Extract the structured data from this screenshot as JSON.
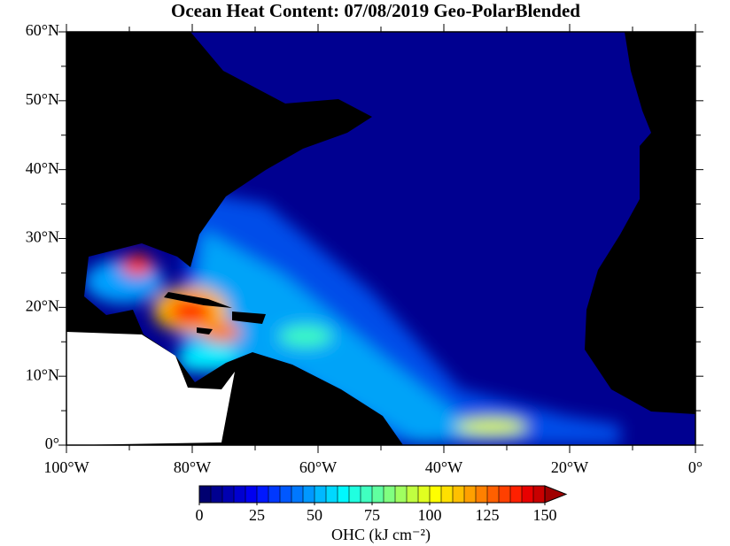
{
  "chart_data": {
    "type": "map",
    "title": "Ocean Heat Content: 07/08/2019 Geo-PolarBlended",
    "xlim": [
      -100,
      0
    ],
    "ylim": [
      0,
      60
    ],
    "xticks": [
      {
        "value": -100,
        "label": "100°W"
      },
      {
        "value": -80,
        "label": "80°W"
      },
      {
        "value": -60,
        "label": "60°W"
      },
      {
        "value": -40,
        "label": "40°W"
      },
      {
        "value": -20,
        "label": "20°W"
      },
      {
        "value": 0,
        "label": "0°"
      }
    ],
    "xminorticks": [
      -90,
      -70,
      -50,
      -30,
      -10
    ],
    "yticks": [
      {
        "value": 0,
        "label": "0°"
      },
      {
        "value": 10,
        "label": "10°N"
      },
      {
        "value": 20,
        "label": "20°N"
      },
      {
        "value": 30,
        "label": "30°N"
      },
      {
        "value": 40,
        "label": "40°N"
      },
      {
        "value": 50,
        "label": "50°N"
      },
      {
        "value": 60,
        "label": "60°N"
      }
    ],
    "yminorticks": [
      5,
      15,
      25,
      35,
      45,
      55
    ],
    "colorbar": {
      "label": "OHC (kJ cm⁻²)",
      "lim": [
        0,
        150
      ],
      "ticks": [
        0,
        25,
        50,
        75,
        100,
        125,
        150
      ],
      "colors": [
        "#000070",
        "#000090",
        "#0000b0",
        "#0000d0",
        "#0000f0",
        "#0018ff",
        "#0038ff",
        "#0058ff",
        "#0078ff",
        "#0098ff",
        "#00b8ff",
        "#00d8ff",
        "#00f8ff",
        "#20ffe0",
        "#40ffc0",
        "#60ffa0",
        "#80ff80",
        "#a0ff60",
        "#c0ff40",
        "#e0ff20",
        "#ffff00",
        "#ffe000",
        "#ffc000",
        "#ffa000",
        "#ff8000",
        "#ff6000",
        "#ff4000",
        "#ff2000",
        "#e80000",
        "#c80000"
      ],
      "extend_color": "#a00000"
    }
  }
}
